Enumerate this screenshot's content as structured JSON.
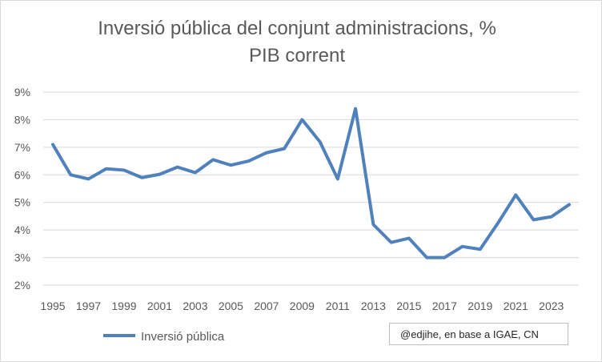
{
  "chart_data": {
    "type": "line",
    "title": "Inversió pública del conjunt administracions, % PIB corrent",
    "title_lines": [
      "Inversió pública del conjunt administracions, %",
      "PIB corrent"
    ],
    "xlabel": "",
    "ylabel": "",
    "x": [
      1995,
      1996,
      1997,
      1998,
      1999,
      2000,
      2001,
      2002,
      2003,
      2004,
      2005,
      2006,
      2007,
      2008,
      2009,
      2010,
      2011,
      2012,
      2013,
      2014,
      2015,
      2016,
      2017,
      2018,
      2019,
      2020,
      2021,
      2022,
      2023,
      2024
    ],
    "x_tick_labels": [
      "1995",
      "1997",
      "1999",
      "2001",
      "2003",
      "2005",
      "2007",
      "2009",
      "2011",
      "2013",
      "2015",
      "2017",
      "2019",
      "2021",
      "2023"
    ],
    "ylim": [
      2,
      9
    ],
    "y_tick_labels": [
      "2%",
      "3%",
      "4%",
      "5%",
      "6%",
      "7%",
      "8%",
      "9%"
    ],
    "grid": true,
    "legend_position": "bottom-left",
    "series": [
      {
        "name": "Inversió pública",
        "color": "#4f81bd",
        "values": [
          7.1,
          6.0,
          5.85,
          6.22,
          6.17,
          5.9,
          6.02,
          6.28,
          6.08,
          6.55,
          6.35,
          6.5,
          6.8,
          6.95,
          8.0,
          7.2,
          5.85,
          8.4,
          4.2,
          3.55,
          3.7,
          3.0,
          3.0,
          3.4,
          3.3,
          4.25,
          5.27,
          4.37,
          4.48,
          4.92
        ]
      }
    ],
    "annotation": "@edjihe, en base a IGAE, CN"
  }
}
